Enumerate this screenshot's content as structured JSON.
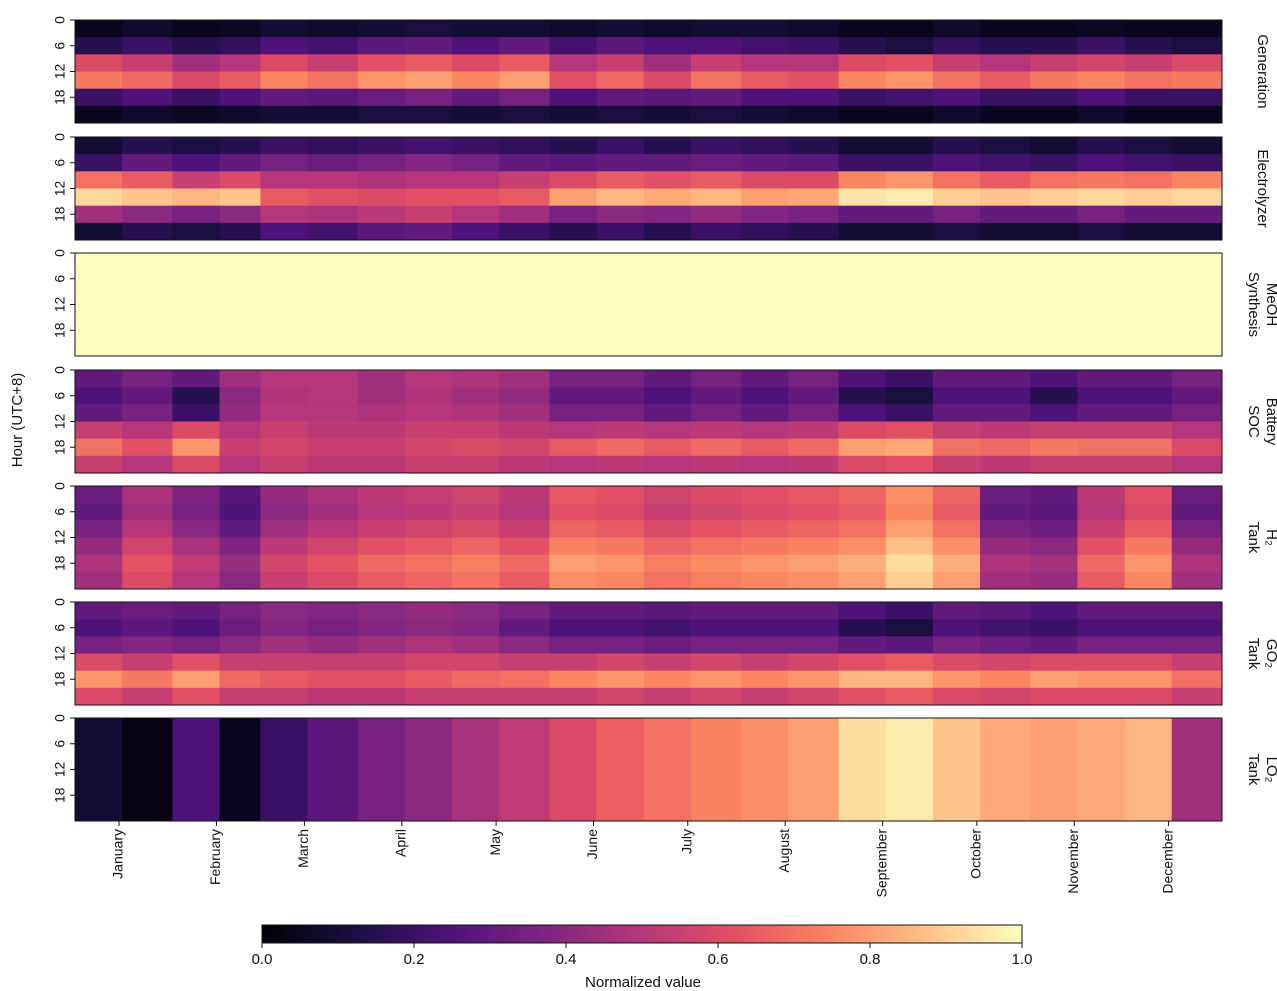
{
  "chart_data": {
    "type": "heatmap",
    "colormap": "magma",
    "clim": [
      0,
      1
    ],
    "ylabel": "Hour (UTC+8)",
    "ylim": [
      0,
      24
    ],
    "yticks": [
      0,
      6,
      12,
      18
    ],
    "xlim": [
      0,
      365
    ],
    "xbins": [
      0,
      15,
      31,
      46,
      59,
      74,
      90,
      105,
      120,
      135,
      151,
      166,
      181,
      196,
      212,
      227,
      243,
      258,
      273,
      288,
      304,
      319,
      334,
      349,
      365
    ],
    "xticks": [
      {
        "value": 14,
        "label": "January"
      },
      {
        "value": 45,
        "label": "February"
      },
      {
        "value": 73,
        "label": "March"
      },
      {
        "value": 104,
        "label": "April"
      },
      {
        "value": 134,
        "label": "May"
      },
      {
        "value": 165,
        "label": "June"
      },
      {
        "value": 195,
        "label": "July"
      },
      {
        "value": 226,
        "label": "August"
      },
      {
        "value": 257,
        "label": "September"
      },
      {
        "value": 287,
        "label": "October"
      },
      {
        "value": 318,
        "label": "November"
      },
      {
        "value": 348,
        "label": "December"
      }
    ],
    "colorbar_label": "Normalized value",
    "colorbar_ticks": [
      {
        "value": 0,
        "label": "0.0"
      },
      0.2,
      0.4,
      0.6,
      0.8,
      {
        "value": 1,
        "label": "1.0"
      }
    ],
    "panels": [
      {
        "label": [
          "Generation"
        ],
        "ybins": [
          0,
          4,
          8,
          12,
          16,
          20,
          24
        ],
        "z": [
          [
            0.05,
            0.08,
            0.05,
            0.06,
            0.1,
            0.08,
            0.1,
            0.12,
            0.1,
            0.1,
            0.08,
            0.1,
            0.08,
            0.1,
            0.1,
            0.08,
            0.05,
            0.05,
            0.08,
            0.05,
            0.05,
            0.06,
            0.05,
            0.05
          ],
          [
            0.15,
            0.2,
            0.15,
            0.18,
            0.25,
            0.22,
            0.28,
            0.3,
            0.25,
            0.3,
            0.22,
            0.28,
            0.25,
            0.25,
            0.22,
            0.2,
            0.15,
            0.12,
            0.18,
            0.15,
            0.15,
            0.2,
            0.15,
            0.12
          ],
          [
            0.6,
            0.55,
            0.45,
            0.5,
            0.6,
            0.55,
            0.62,
            0.65,
            0.6,
            0.65,
            0.5,
            0.55,
            0.45,
            0.55,
            0.5,
            0.5,
            0.6,
            0.62,
            0.55,
            0.5,
            0.55,
            0.58,
            0.55,
            0.6
          ],
          [
            0.72,
            0.68,
            0.6,
            0.65,
            0.75,
            0.7,
            0.78,
            0.8,
            0.75,
            0.8,
            0.62,
            0.68,
            0.6,
            0.7,
            0.65,
            0.62,
            0.75,
            0.78,
            0.7,
            0.65,
            0.72,
            0.75,
            0.7,
            0.72
          ],
          [
            0.2,
            0.25,
            0.2,
            0.25,
            0.3,
            0.28,
            0.32,
            0.35,
            0.3,
            0.35,
            0.25,
            0.3,
            0.28,
            0.3,
            0.25,
            0.25,
            0.2,
            0.22,
            0.25,
            0.2,
            0.2,
            0.25,
            0.2,
            0.2
          ],
          [
            0.05,
            0.08,
            0.06,
            0.08,
            0.1,
            0.1,
            0.12,
            0.12,
            0.1,
            0.12,
            0.1,
            0.12,
            0.1,
            0.12,
            0.1,
            0.08,
            0.05,
            0.05,
            0.08,
            0.05,
            0.05,
            0.08,
            0.05,
            0.05
          ]
        ]
      },
      {
        "label": [
          "Electrolyzer"
        ],
        "ybins": [
          0,
          4,
          8,
          12,
          16,
          20,
          24
        ],
        "z": [
          [
            0.1,
            0.15,
            0.12,
            0.15,
            0.2,
            0.18,
            0.2,
            0.22,
            0.2,
            0.18,
            0.15,
            0.2,
            0.15,
            0.2,
            0.18,
            0.15,
            0.1,
            0.1,
            0.15,
            0.12,
            0.1,
            0.15,
            0.12,
            0.1
          ],
          [
            0.2,
            0.3,
            0.25,
            0.3,
            0.35,
            0.32,
            0.35,
            0.38,
            0.35,
            0.3,
            0.28,
            0.3,
            0.3,
            0.32,
            0.3,
            0.28,
            0.2,
            0.2,
            0.25,
            0.22,
            0.2,
            0.25,
            0.22,
            0.2
          ],
          [
            0.7,
            0.65,
            0.55,
            0.6,
            0.5,
            0.5,
            0.48,
            0.5,
            0.5,
            0.55,
            0.6,
            0.65,
            0.62,
            0.65,
            0.6,
            0.6,
            0.75,
            0.78,
            0.7,
            0.65,
            0.7,
            0.72,
            0.7,
            0.75
          ],
          [
            0.92,
            0.88,
            0.85,
            0.88,
            0.65,
            0.62,
            0.6,
            0.62,
            0.62,
            0.65,
            0.8,
            0.85,
            0.82,
            0.85,
            0.8,
            0.82,
            0.95,
            0.96,
            0.9,
            0.88,
            0.9,
            0.92,
            0.9,
            0.92
          ],
          [
            0.45,
            0.4,
            0.35,
            0.4,
            0.5,
            0.48,
            0.52,
            0.55,
            0.5,
            0.45,
            0.35,
            0.4,
            0.38,
            0.42,
            0.38,
            0.35,
            0.3,
            0.3,
            0.35,
            0.3,
            0.3,
            0.35,
            0.3,
            0.3
          ],
          [
            0.1,
            0.15,
            0.12,
            0.15,
            0.25,
            0.22,
            0.28,
            0.3,
            0.25,
            0.2,
            0.15,
            0.2,
            0.15,
            0.2,
            0.18,
            0.15,
            0.1,
            0.1,
            0.12,
            0.1,
            0.1,
            0.12,
            0.1,
            0.1
          ]
        ]
      },
      {
        "label": [
          "MeOH",
          "Synthesis"
        ],
        "ybins": [
          0,
          24
        ],
        "z": [
          [
            1,
            1,
            1,
            1,
            1,
            1,
            1,
            1,
            1,
            1,
            1,
            1,
            1,
            1,
            1,
            1,
            1,
            1,
            1,
            1,
            1,
            1,
            1,
            1
          ]
        ]
      },
      {
        "label": [
          "Battery",
          "SOC"
        ],
        "ybins": [
          0,
          4,
          8,
          12,
          16,
          20,
          24
        ],
        "z": [
          [
            0.3,
            0.35,
            0.3,
            0.45,
            0.5,
            0.5,
            0.45,
            0.5,
            0.48,
            0.45,
            0.35,
            0.35,
            0.3,
            0.35,
            0.3,
            0.35,
            0.25,
            0.2,
            0.3,
            0.3,
            0.25,
            0.3,
            0.3,
            0.35
          ],
          [
            0.25,
            0.3,
            0.15,
            0.4,
            0.48,
            0.5,
            0.45,
            0.48,
            0.45,
            0.42,
            0.3,
            0.3,
            0.25,
            0.3,
            0.25,
            0.3,
            0.15,
            0.12,
            0.25,
            0.25,
            0.15,
            0.25,
            0.25,
            0.3
          ],
          [
            0.3,
            0.35,
            0.2,
            0.42,
            0.5,
            0.5,
            0.48,
            0.5,
            0.48,
            0.45,
            0.35,
            0.35,
            0.3,
            0.35,
            0.3,
            0.35,
            0.25,
            0.2,
            0.3,
            0.3,
            0.25,
            0.3,
            0.3,
            0.35
          ],
          [
            0.55,
            0.5,
            0.6,
            0.5,
            0.55,
            0.52,
            0.52,
            0.55,
            0.55,
            0.52,
            0.5,
            0.52,
            0.5,
            0.52,
            0.5,
            0.52,
            0.6,
            0.62,
            0.55,
            0.52,
            0.55,
            0.55,
            0.55,
            0.5
          ],
          [
            0.7,
            0.62,
            0.78,
            0.55,
            0.58,
            0.55,
            0.55,
            0.58,
            0.6,
            0.58,
            0.65,
            0.68,
            0.65,
            0.68,
            0.65,
            0.68,
            0.8,
            0.82,
            0.7,
            0.68,
            0.72,
            0.7,
            0.7,
            0.6
          ],
          [
            0.55,
            0.5,
            0.6,
            0.5,
            0.55,
            0.52,
            0.52,
            0.55,
            0.55,
            0.52,
            0.5,
            0.52,
            0.5,
            0.52,
            0.5,
            0.52,
            0.6,
            0.62,
            0.55,
            0.52,
            0.55,
            0.55,
            0.55,
            0.5
          ]
        ]
      },
      {
        "label": [
          "H₂",
          "Tank"
        ],
        "ybins": [
          0,
          4,
          8,
          12,
          16,
          20,
          24
        ],
        "z": [
          [
            0.32,
            0.47,
            0.37,
            0.27,
            0.42,
            0.47,
            0.52,
            0.54,
            0.57,
            0.52,
            0.64,
            0.62,
            0.57,
            0.6,
            0.62,
            0.64,
            0.67,
            0.77,
            0.67,
            0.32,
            0.3,
            0.52,
            0.62,
            0.32
          ],
          [
            0.3,
            0.45,
            0.35,
            0.25,
            0.4,
            0.45,
            0.5,
            0.52,
            0.55,
            0.5,
            0.62,
            0.6,
            0.55,
            0.58,
            0.6,
            0.62,
            0.65,
            0.75,
            0.65,
            0.3,
            0.28,
            0.5,
            0.6,
            0.3
          ],
          [
            0.35,
            0.5,
            0.4,
            0.3,
            0.45,
            0.5,
            0.55,
            0.57,
            0.6,
            0.55,
            0.67,
            0.65,
            0.6,
            0.63,
            0.65,
            0.67,
            0.7,
            0.8,
            0.7,
            0.35,
            0.33,
            0.55,
            0.65,
            0.35
          ],
          [
            0.42,
            0.57,
            0.47,
            0.37,
            0.52,
            0.57,
            0.62,
            0.64,
            0.67,
            0.62,
            0.74,
            0.72,
            0.67,
            0.7,
            0.72,
            0.74,
            0.77,
            0.87,
            0.77,
            0.42,
            0.4,
            0.62,
            0.72,
            0.42
          ],
          [
            0.48,
            0.63,
            0.53,
            0.43,
            0.58,
            0.63,
            0.68,
            0.7,
            0.73,
            0.68,
            0.8,
            0.78,
            0.73,
            0.76,
            0.78,
            0.8,
            0.83,
            0.93,
            0.83,
            0.48,
            0.46,
            0.68,
            0.78,
            0.48
          ],
          [
            0.45,
            0.6,
            0.5,
            0.4,
            0.55,
            0.6,
            0.65,
            0.67,
            0.7,
            0.65,
            0.77,
            0.75,
            0.7,
            0.73,
            0.75,
            0.77,
            0.8,
            0.9,
            0.8,
            0.45,
            0.43,
            0.65,
            0.75,
            0.45
          ]
        ]
      },
      {
        "label": [
          "GO₂",
          "Tank"
        ],
        "ybins": [
          0,
          4,
          8,
          12,
          16,
          20,
          24
        ],
        "z": [
          [
            0.3,
            0.32,
            0.3,
            0.35,
            0.4,
            0.38,
            0.4,
            0.42,
            0.4,
            0.35,
            0.3,
            0.3,
            0.28,
            0.3,
            0.3,
            0.3,
            0.25,
            0.2,
            0.3,
            0.28,
            0.25,
            0.3,
            0.3,
            0.3
          ],
          [
            0.25,
            0.28,
            0.25,
            0.32,
            0.38,
            0.35,
            0.38,
            0.4,
            0.38,
            0.3,
            0.25,
            0.25,
            0.22,
            0.25,
            0.25,
            0.25,
            0.15,
            0.12,
            0.25,
            0.22,
            0.2,
            0.25,
            0.25,
            0.25
          ],
          [
            0.35,
            0.38,
            0.35,
            0.4,
            0.45,
            0.42,
            0.45,
            0.48,
            0.45,
            0.4,
            0.35,
            0.35,
            0.32,
            0.35,
            0.35,
            0.35,
            0.3,
            0.28,
            0.35,
            0.32,
            0.3,
            0.35,
            0.35,
            0.35
          ],
          [
            0.6,
            0.55,
            0.62,
            0.55,
            0.55,
            0.55,
            0.55,
            0.58,
            0.58,
            0.55,
            0.55,
            0.58,
            0.55,
            0.58,
            0.55,
            0.58,
            0.62,
            0.65,
            0.6,
            0.58,
            0.6,
            0.6,
            0.6,
            0.55
          ],
          [
            0.78,
            0.72,
            0.8,
            0.68,
            0.65,
            0.62,
            0.62,
            0.65,
            0.68,
            0.7,
            0.75,
            0.78,
            0.75,
            0.78,
            0.75,
            0.78,
            0.85,
            0.85,
            0.78,
            0.75,
            0.8,
            0.78,
            0.78,
            0.7
          ],
          [
            0.6,
            0.55,
            0.62,
            0.55,
            0.55,
            0.52,
            0.52,
            0.55,
            0.55,
            0.55,
            0.55,
            0.58,
            0.55,
            0.58,
            0.55,
            0.58,
            0.62,
            0.65,
            0.6,
            0.58,
            0.6,
            0.6,
            0.6,
            0.55
          ]
        ]
      },
      {
        "label": [
          "LO₂",
          "Tank"
        ],
        "ybins": [
          0,
          24
        ],
        "z": [
          [
            0.1,
            0.03,
            0.25,
            0.05,
            0.2,
            0.28,
            0.35,
            0.4,
            0.47,
            0.53,
            0.6,
            0.66,
            0.7,
            0.74,
            0.77,
            0.8,
            0.93,
            0.96,
            0.88,
            0.82,
            0.8,
            0.82,
            0.85,
            0.45
          ]
        ]
      }
    ]
  }
}
